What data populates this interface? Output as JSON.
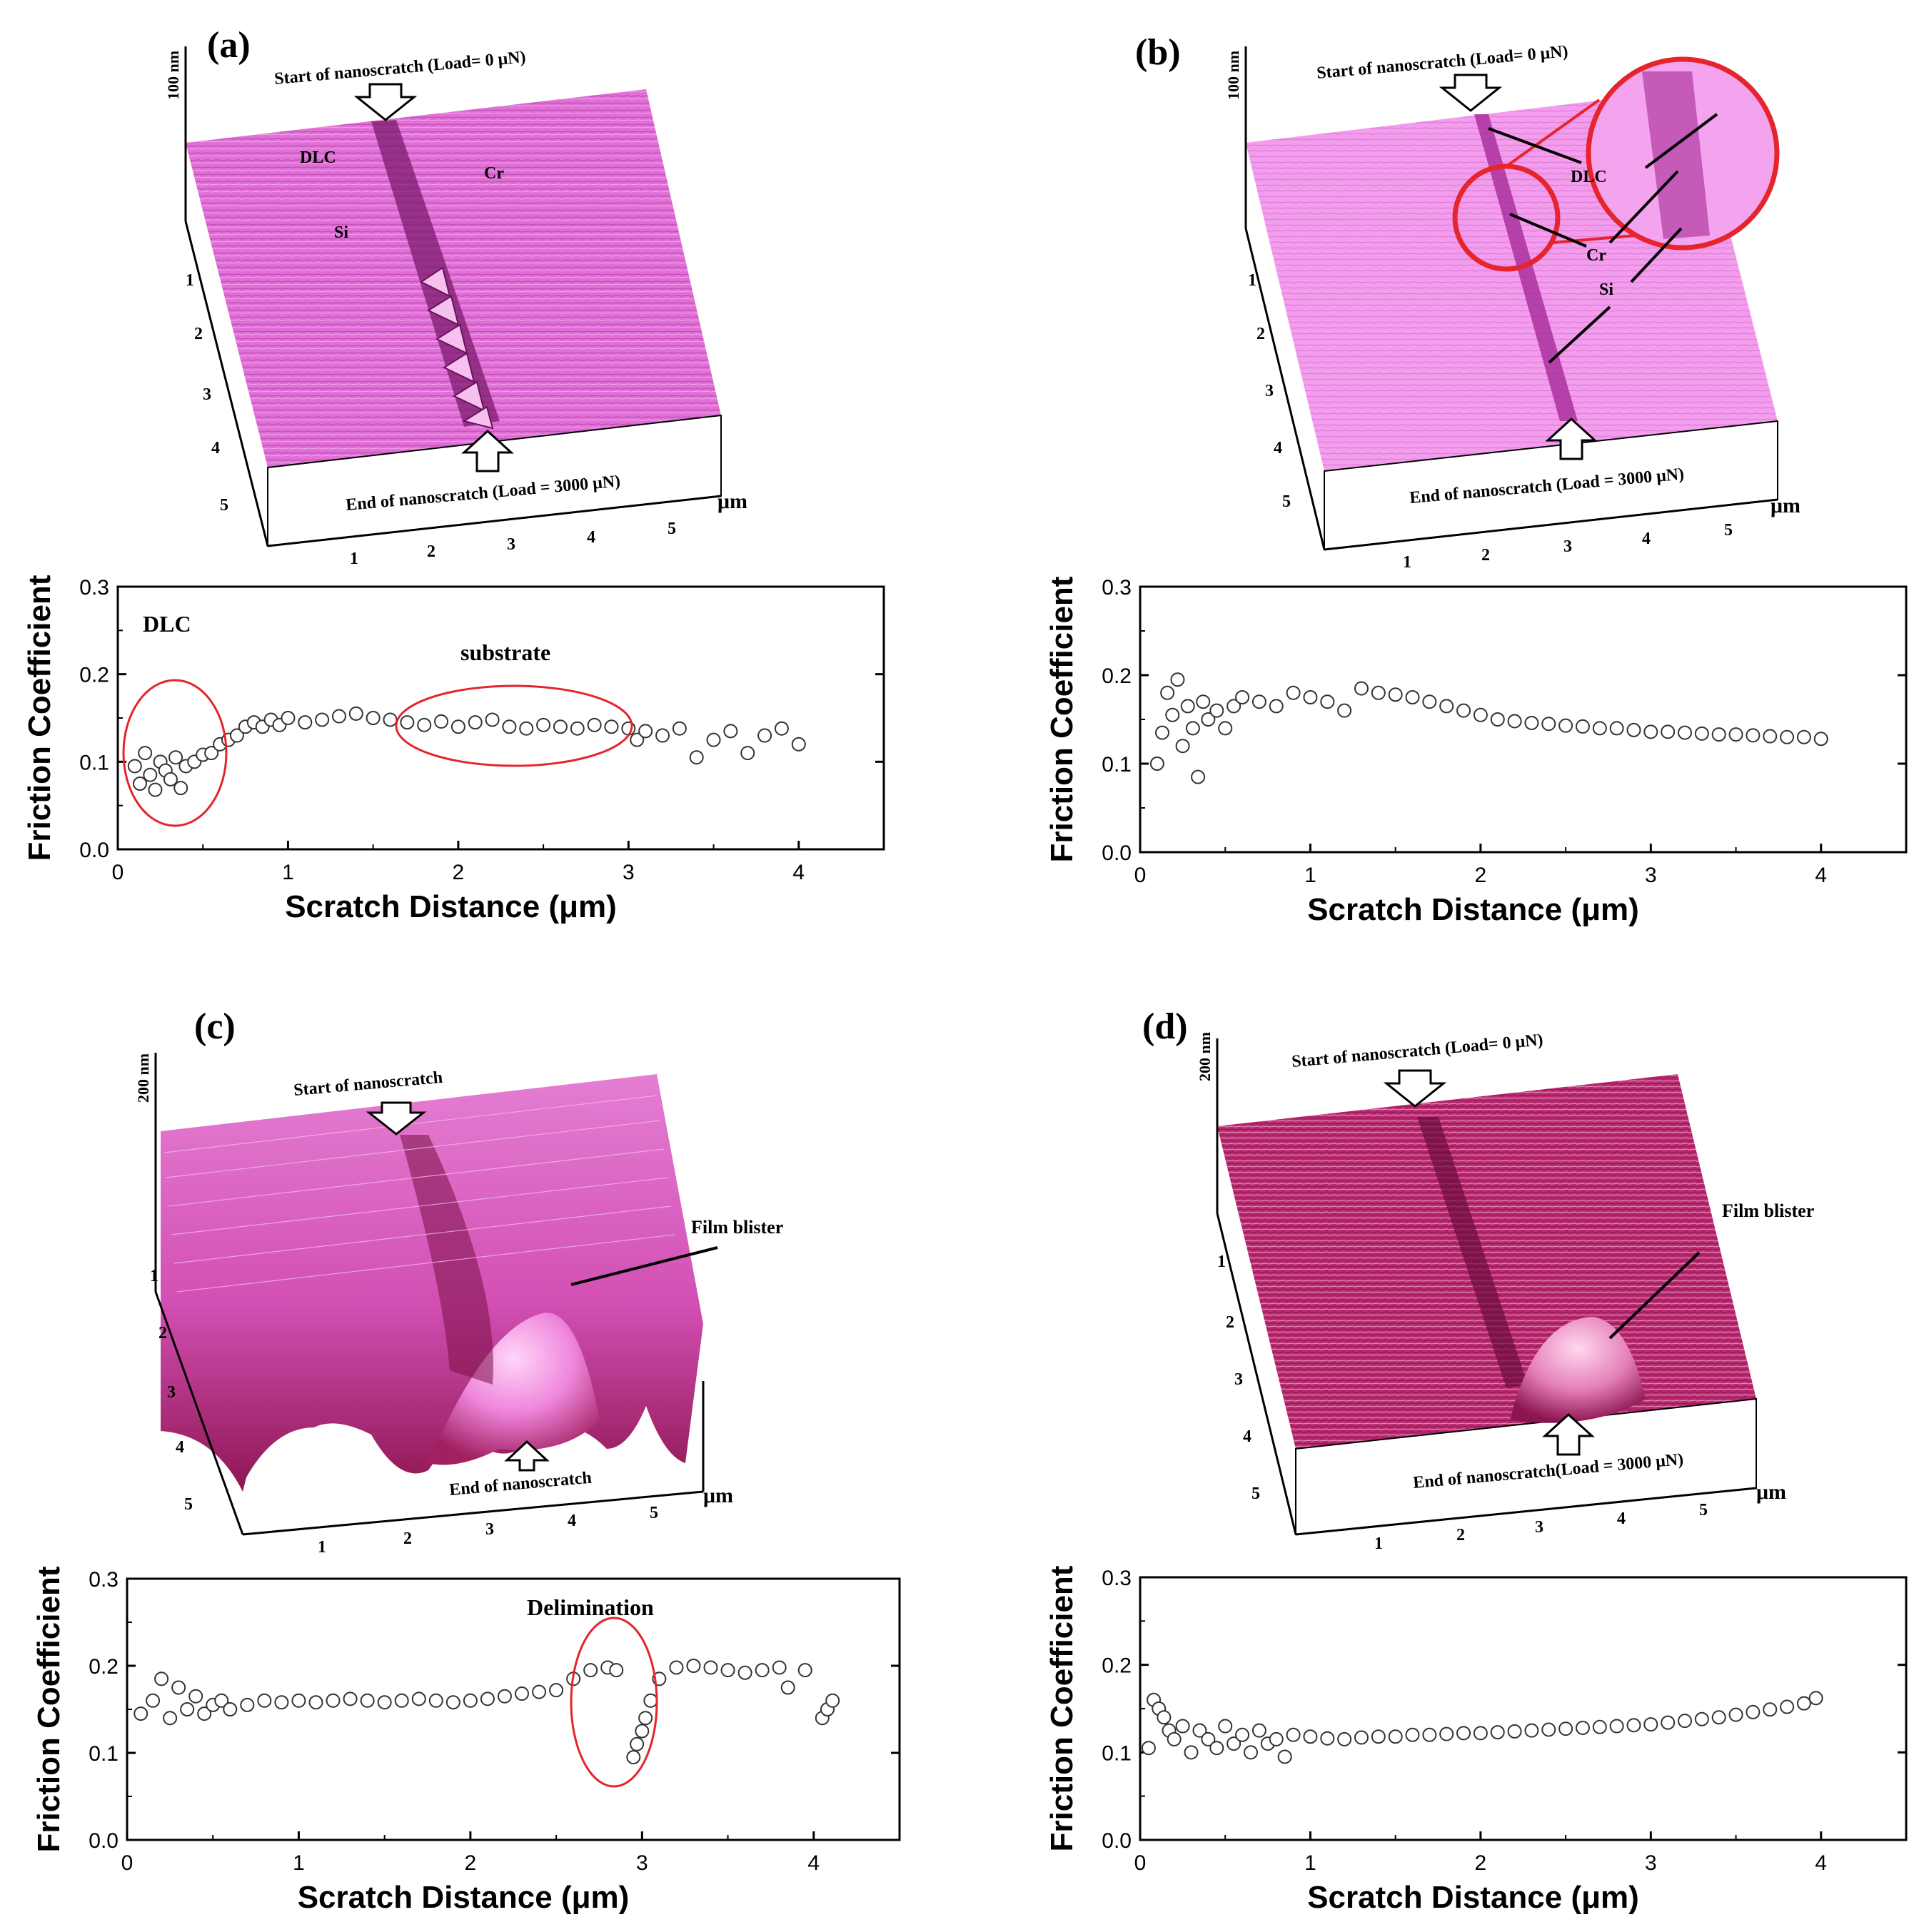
{
  "panels": [
    {
      "label": "(a)",
      "afm": {
        "z_scale": "100 nm",
        "start_label": "Start of nanoscratch (Load= 0 μN)",
        "end_label": "End of nanoscratch (Load = 3000 μN)",
        "unit": "μm",
        "x_ticks": [
          "1",
          "2",
          "3",
          "4",
          "5"
        ],
        "y_ticks": [
          "1",
          "2",
          "3",
          "4",
          "5"
        ],
        "annotations": [
          "DLC",
          "Cr",
          "Si"
        ],
        "surface_color": "#e070d6"
      }
    },
    {
      "label": "(b)",
      "afm": {
        "z_scale": "100 nm",
        "start_label": "Start of nanoscratch (Load= 0 μN)",
        "end_label": "End of nanoscratch (Load = 3000 μN)",
        "unit": "μm",
        "x_ticks": [
          "1",
          "2",
          "3",
          "4",
          "5"
        ],
        "y_ticks": [
          "1",
          "2",
          "3",
          "4",
          "5"
        ],
        "annotations": [
          "DLC",
          "Cr",
          "Si"
        ],
        "surface_color": "#f08ee8"
      }
    },
    {
      "label": "(c)",
      "afm": {
        "z_scale": "200 nm",
        "start_label": "Start of nanoscratch",
        "end_label": "End of nanoscratch",
        "unit": "μm",
        "x_ticks": [
          "1",
          "2",
          "3",
          "4",
          "5"
        ],
        "y_ticks": [
          "1",
          "2",
          "3",
          "4",
          "5"
        ],
        "annotations": [
          "Film blister"
        ],
        "surface_color": "#e060c8"
      }
    },
    {
      "label": "(d)",
      "afm": {
        "z_scale": "200 nm",
        "start_label": "Start of nanoscratch (Load= 0 μN)",
        "end_label": "End of nanoscratch(Load = 3000 μN)",
        "unit": "μm",
        "x_ticks": [
          "1",
          "2",
          "3",
          "4",
          "5"
        ],
        "y_ticks": [
          "1",
          "2",
          "3",
          "4",
          "5"
        ],
        "annotations": [
          "Film blister"
        ],
        "surface_color": "#b8286e"
      }
    }
  ],
  "chart_data": [
    {
      "type": "scatter",
      "panel": "(a)",
      "xlabel": "Scratch Distance (μm)",
      "ylabel": "Friction Coefficient",
      "xlim": [
        0,
        4.5
      ],
      "ylim": [
        0.0,
        0.3
      ],
      "x_ticks": [
        0,
        1,
        2,
        3,
        4
      ],
      "y_ticks": [
        "0.0",
        "0.1",
        "0.2",
        "0.3"
      ],
      "annotations": [
        "DLC",
        "substrate"
      ],
      "series": [
        {
          "x": [
            0.1,
            0.13,
            0.16,
            0.19,
            0.22,
            0.25,
            0.28,
            0.31,
            0.34,
            0.37,
            0.4,
            0.45,
            0.5,
            0.55,
            0.6,
            0.65,
            0.7,
            0.75,
            0.8,
            0.85,
            0.9,
            0.95,
            1.0,
            1.1,
            1.2,
            1.3,
            1.4,
            1.5,
            1.6,
            1.7,
            1.8,
            1.9,
            2.0,
            2.1,
            2.2,
            2.3,
            2.4,
            2.5,
            2.6,
            2.7,
            2.8,
            2.9,
            3.0,
            3.05,
            3.1,
            3.2,
            3.3,
            3.4,
            3.5,
            3.6,
            3.7,
            3.8,
            3.9,
            4.0
          ],
          "y": [
            0.095,
            0.075,
            0.11,
            0.085,
            0.068,
            0.1,
            0.09,
            0.08,
            0.105,
            0.07,
            0.095,
            0.1,
            0.108,
            0.11,
            0.12,
            0.125,
            0.13,
            0.14,
            0.145,
            0.14,
            0.148,
            0.142,
            0.15,
            0.145,
            0.148,
            0.152,
            0.155,
            0.15,
            0.148,
            0.145,
            0.142,
            0.146,
            0.14,
            0.145,
            0.148,
            0.14,
            0.138,
            0.142,
            0.14,
            0.138,
            0.142,
            0.14,
            0.138,
            0.125,
            0.135,
            0.13,
            0.138,
            0.105,
            0.125,
            0.135,
            0.11,
            0.13,
            0.138,
            0.12
          ]
        }
      ]
    },
    {
      "type": "scatter",
      "panel": "(b)",
      "xlabel": "Scratch Distance (μm)",
      "ylabel": "Friction Coefficient",
      "xlim": [
        0,
        4.5
      ],
      "ylim": [
        0.0,
        0.3
      ],
      "x_ticks": [
        0,
        1,
        2,
        3,
        4
      ],
      "y_ticks": [
        "0.0",
        "0.1",
        "0.2",
        "0.3"
      ],
      "series": [
        {
          "x": [
            0.1,
            0.13,
            0.16,
            0.19,
            0.22,
            0.25,
            0.28,
            0.31,
            0.34,
            0.37,
            0.4,
            0.45,
            0.5,
            0.55,
            0.6,
            0.7,
            0.8,
            0.9,
            1.0,
            1.1,
            1.2,
            1.3,
            1.4,
            1.5,
            1.6,
            1.7,
            1.8,
            1.9,
            2.0,
            2.1,
            2.2,
            2.3,
            2.4,
            2.5,
            2.6,
            2.7,
            2.8,
            2.9,
            3.0,
            3.1,
            3.2,
            3.3,
            3.4,
            3.5,
            3.6,
            3.7,
            3.8,
            3.9,
            4.0
          ],
          "y": [
            0.1,
            0.135,
            0.18,
            0.155,
            0.195,
            0.12,
            0.165,
            0.14,
            0.085,
            0.17,
            0.15,
            0.16,
            0.14,
            0.165,
            0.175,
            0.17,
            0.165,
            0.18,
            0.175,
            0.17,
            0.16,
            0.185,
            0.18,
            0.178,
            0.175,
            0.17,
            0.165,
            0.16,
            0.155,
            0.15,
            0.148,
            0.146,
            0.145,
            0.143,
            0.142,
            0.14,
            0.14,
            0.138,
            0.136,
            0.136,
            0.135,
            0.134,
            0.133,
            0.133,
            0.132,
            0.131,
            0.13,
            0.13,
            0.128
          ]
        }
      ]
    },
    {
      "type": "scatter",
      "panel": "(c)",
      "xlabel": "Scratch Distance (μm)",
      "ylabel": "Friction Coefficient",
      "xlim": [
        0,
        4.5
      ],
      "ylim": [
        0.0,
        0.3
      ],
      "x_ticks": [
        0,
        1,
        2,
        3,
        4
      ],
      "y_ticks": [
        "0.0",
        "0.1",
        "0.2",
        "0.3"
      ],
      "annotations": [
        "Delimination"
      ],
      "series": [
        {
          "x": [
            0.08,
            0.15,
            0.2,
            0.25,
            0.3,
            0.35,
            0.4,
            0.45,
            0.5,
            0.55,
            0.6,
            0.7,
            0.8,
            0.9,
            1.0,
            1.1,
            1.2,
            1.3,
            1.4,
            1.5,
            1.6,
            1.7,
            1.8,
            1.9,
            2.0,
            2.1,
            2.2,
            2.3,
            2.4,
            2.5,
            2.6,
            2.7,
            2.8,
            2.85,
            2.95,
            2.97,
            3.0,
            3.02,
            3.05,
            3.1,
            3.2,
            3.3,
            3.4,
            3.5,
            3.6,
            3.7,
            3.8,
            3.85,
            3.95,
            4.05,
            4.08,
            4.11
          ],
          "y": [
            0.145,
            0.16,
            0.185,
            0.14,
            0.175,
            0.15,
            0.165,
            0.145,
            0.155,
            0.16,
            0.15,
            0.155,
            0.16,
            0.158,
            0.16,
            0.158,
            0.16,
            0.162,
            0.16,
            0.158,
            0.16,
            0.162,
            0.16,
            0.158,
            0.16,
            0.162,
            0.165,
            0.168,
            0.17,
            0.172,
            0.185,
            0.195,
            0.198,
            0.195,
            0.095,
            0.11,
            0.125,
            0.14,
            0.16,
            0.185,
            0.198,
            0.2,
            0.198,
            0.195,
            0.192,
            0.195,
            0.198,
            0.175,
            0.195,
            0.14,
            0.15,
            0.16
          ]
        }
      ]
    },
    {
      "type": "scatter",
      "panel": "(d)",
      "xlabel": "Scratch Distance (μm)",
      "ylabel": "Friction Coefficient",
      "xlim": [
        0,
        4.5
      ],
      "ylim": [
        0.0,
        0.3
      ],
      "x_ticks": [
        0,
        1,
        2,
        3,
        4
      ],
      "y_ticks": [
        "0.0",
        "0.1",
        "0.2",
        "0.3"
      ],
      "series": [
        {
          "x": [
            0.05,
            0.08,
            0.11,
            0.14,
            0.17,
            0.2,
            0.25,
            0.3,
            0.35,
            0.4,
            0.45,
            0.5,
            0.55,
            0.6,
            0.65,
            0.7,
            0.75,
            0.8,
            0.85,
            0.9,
            1.0,
            1.1,
            1.2,
            1.3,
            1.4,
            1.5,
            1.6,
            1.7,
            1.8,
            1.9,
            2.0,
            2.1,
            2.2,
            2.3,
            2.4,
            2.5,
            2.6,
            2.7,
            2.8,
            2.9,
            3.0,
            3.1,
            3.2,
            3.3,
            3.4,
            3.5,
            3.6,
            3.7,
            3.8,
            3.9,
            3.97
          ],
          "y": [
            0.105,
            0.16,
            0.15,
            0.14,
            0.125,
            0.115,
            0.13,
            0.1,
            0.125,
            0.115,
            0.105,
            0.13,
            0.11,
            0.12,
            0.1,
            0.125,
            0.11,
            0.115,
            0.095,
            0.12,
            0.118,
            0.116,
            0.115,
            0.117,
            0.118,
            0.118,
            0.12,
            0.12,
            0.121,
            0.122,
            0.122,
            0.123,
            0.124,
            0.125,
            0.126,
            0.127,
            0.128,
            0.129,
            0.13,
            0.131,
            0.132,
            0.134,
            0.136,
            0.138,
            0.14,
            0.143,
            0.146,
            0.149,
            0.152,
            0.156,
            0.162
          ]
        }
      ]
    }
  ]
}
